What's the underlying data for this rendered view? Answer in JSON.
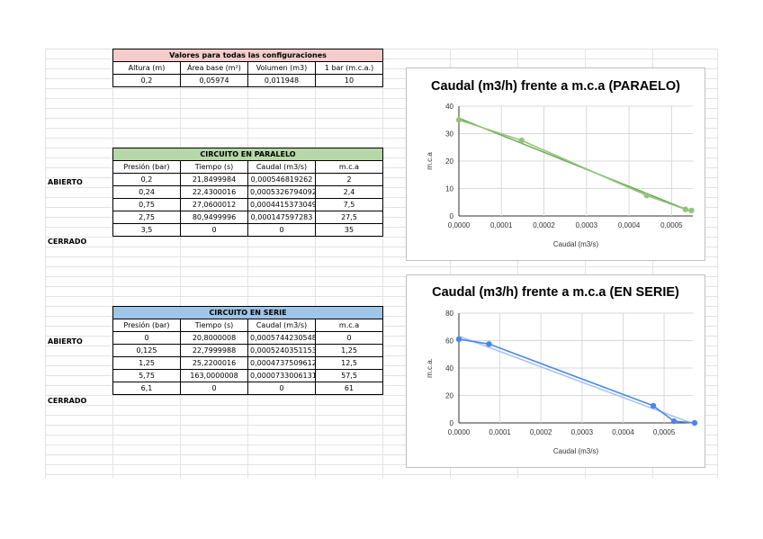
{
  "table_common": {
    "title": "Valores para todas las configuraciones",
    "headers": [
      "Altura (m)",
      "Área base (m²)",
      "Volumen (m3)",
      "1 bar (m.c.a.)"
    ],
    "values": [
      "0,2",
      "0,05974",
      "0,011948",
      "10"
    ]
  },
  "table_parallel": {
    "title": "CIRCUITO EN PARALELO",
    "headers": [
      "Presión (bar)",
      "Tiempo (s)",
      "Caudal (m3/s)",
      "m.c.a"
    ],
    "rows": [
      [
        "0,2",
        "21,8499984",
        "0,000546819262",
        "2"
      ],
      [
        "0,24",
        "22,4300016",
        "0,0005326794092",
        "2,4"
      ],
      [
        "0,75",
        "27,0600012",
        "0,0004415373049",
        "7,5"
      ],
      [
        "2,75",
        "80,9499996",
        "0,000147597283",
        "27,5"
      ],
      [
        "3,5",
        "0",
        "0",
        "35"
      ]
    ],
    "label_open": "ABIERTO",
    "label_closed": "CERRADO"
  },
  "table_series": {
    "title": "CIRCUITO EN SERIE",
    "headers": [
      "Presión (bar)",
      "Tiempo (s)",
      "Caudal (m3/s)",
      "m.c.a"
    ],
    "rows": [
      [
        "0",
        "20,8000008",
        "0,0005744230548",
        "0"
      ],
      [
        "0,125",
        "22,7999988",
        "0,0005240351153",
        "1,25"
      ],
      [
        "1,25",
        "25,2200016",
        "0,0004737509612",
        "12,5"
      ],
      [
        "5,75",
        "163,0000008",
        "0,0000733006131",
        "57,5"
      ],
      [
        "6,1",
        "0",
        "0",
        "61"
      ]
    ],
    "label_open": "ABIERTO",
    "label_closed": "CERRADO"
  },
  "chart_data": [
    {
      "type": "scatter",
      "title": "Caudal (m3/h) frente a m.c.a (PARAELO)",
      "xlabel": "Caudal (m3/s)",
      "ylabel": "m.c.a",
      "xlim": [
        0,
        0.00055
      ],
      "ylim": [
        0,
        40
      ],
      "xticks": [
        "0,0000",
        "0,0001",
        "0,0002",
        "0,0003",
        "0,0004",
        "0,0005"
      ],
      "yticks": [
        "0",
        "10",
        "20",
        "30",
        "40"
      ],
      "grid": true,
      "color": "#93c47d",
      "trend_color": "#6aa84f",
      "series": [
        {
          "x": [
            0,
            0.000147597283,
            0.0004415373049,
            0.0005326794092,
            0.000546819262
          ],
          "y": [
            35,
            27.5,
            7.5,
            2.4,
            2
          ]
        }
      ]
    },
    {
      "type": "scatter",
      "title": "Caudal (m3/h) frente a m.c.a (EN SERIE)",
      "xlabel": "Caudal (m3/s)",
      "ylabel": "m.c.a.",
      "xlim": [
        0,
        0.00057
      ],
      "ylim": [
        0,
        80
      ],
      "xticks": [
        "0,0000",
        "0,0001",
        "0,0002",
        "0,0003",
        "0,0004",
        "0,0005"
      ],
      "yticks": [
        "0",
        "20",
        "40",
        "60",
        "80"
      ],
      "grid": true,
      "color": "#4a86e8",
      "trend_color": "#a4c2f4",
      "series": [
        {
          "x": [
            0,
            7.33006131e-05,
            0.0004737509612,
            0.0005240351153,
            0.0005744230548
          ],
          "y": [
            61,
            57.5,
            12.5,
            1.25,
            0
          ]
        }
      ]
    }
  ]
}
